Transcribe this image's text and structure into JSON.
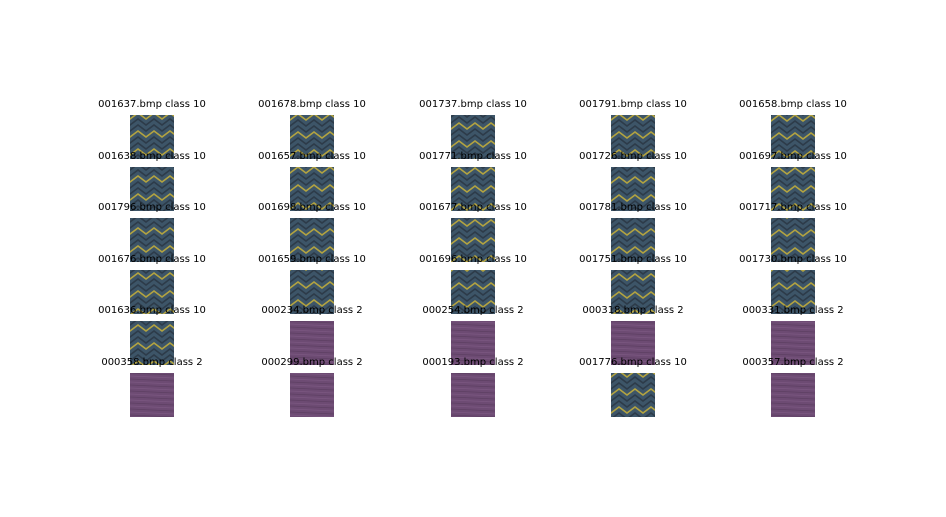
{
  "tiles": [
    {
      "label": "001637.bmp class 10",
      "texture": "woven-zigzag"
    },
    {
      "label": "001678.bmp class 10",
      "texture": "woven-zigzag"
    },
    {
      "label": "001737.bmp class 10",
      "texture": "woven-zigzag"
    },
    {
      "label": "001791.bmp class 10",
      "texture": "woven-zigzag"
    },
    {
      "label": "001658.bmp class 10",
      "texture": "woven-zigzag"
    },
    {
      "label": "001638.bmp class 10",
      "texture": "woven-zigzag"
    },
    {
      "label": "001657.bmp class 10",
      "texture": "woven-zigzag"
    },
    {
      "label": "001771.bmp class 10",
      "texture": "woven-zigzag"
    },
    {
      "label": "001726.bmp class 10",
      "texture": "woven-zigzag"
    },
    {
      "label": "001697.bmp class 10",
      "texture": "woven-zigzag"
    },
    {
      "label": "001796.bmp class 10",
      "texture": "woven-zigzag"
    },
    {
      "label": "001698.bmp class 10",
      "texture": "woven-zigzag"
    },
    {
      "label": "001677.bmp class 10",
      "texture": "woven-zigzag"
    },
    {
      "label": "001781.bmp class 10",
      "texture": "woven-zigzag"
    },
    {
      "label": "001717.bmp class 10",
      "texture": "woven-zigzag"
    },
    {
      "label": "001676.bmp class 10",
      "texture": "woven-zigzag"
    },
    {
      "label": "001659.bmp class 10",
      "texture": "woven-zigzag"
    },
    {
      "label": "001696.bmp class 10",
      "texture": "woven-zigzag"
    },
    {
      "label": "001751.bmp class 10",
      "texture": "woven-zigzag"
    },
    {
      "label": "001730.bmp class 10",
      "texture": "woven-zigzag"
    },
    {
      "label": "001636.bmp class 10",
      "texture": "woven-zigzag"
    },
    {
      "label": "000234.bmp class 2",
      "texture": "purple-fabric"
    },
    {
      "label": "000254.bmp class 2",
      "texture": "purple-fabric"
    },
    {
      "label": "000318.bmp class 2",
      "texture": "purple-fabric"
    },
    {
      "label": "000331.bmp class 2",
      "texture": "purple-fabric"
    },
    {
      "label": "000358.bmp class 2",
      "texture": "purple-fabric"
    },
    {
      "label": "000299.bmp class 2",
      "texture": "purple-fabric"
    },
    {
      "label": "000193.bmp class 2",
      "texture": "purple-fabric"
    },
    {
      "label": "001776.bmp class 10",
      "texture": "woven-zigzag"
    },
    {
      "label": "000357.bmp class 2",
      "texture": "purple-fabric"
    }
  ],
  "colors": {
    "zigzag_base": "#3d5568",
    "zigzag_stripe": "#c8b23a",
    "zigzag_dark": "#2a3744",
    "fabric_base": "#6d4b73",
    "fabric_light": "#8a6690",
    "fabric_dark": "#4e3553"
  }
}
